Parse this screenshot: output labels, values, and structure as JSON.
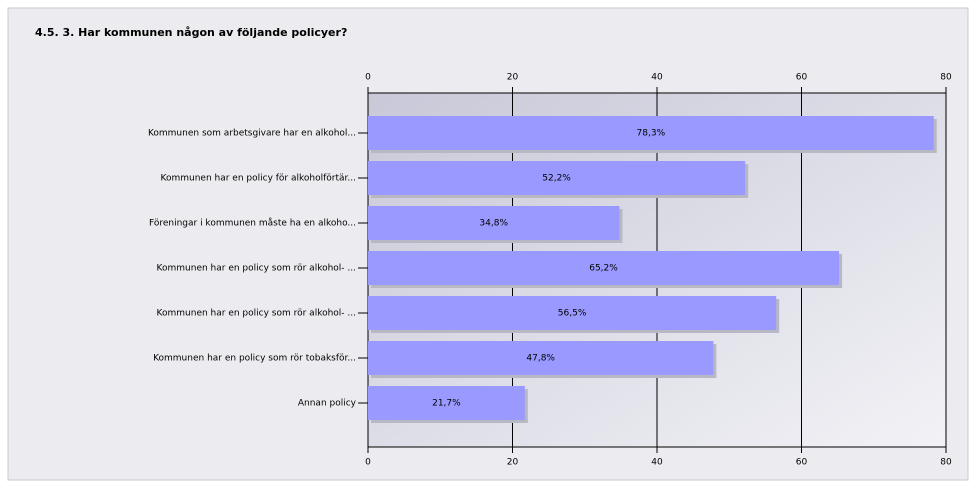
{
  "chart_data": {
    "type": "bar",
    "orientation": "horizontal",
    "title": "4.5. 3. Har kommunen någon av följande policyer?",
    "categories": [
      "Kommunen som arbetsgivare har en alkohol...",
      "Kommunen har en policy för alkoholförtär...",
      "Föreningar i kommunen måste ha en alkoho...",
      "Kommunen har en policy som rör alkohol- ...",
      "Kommunen har en policy som rör alkohol- ...",
      "Kommunen har en policy som rör tobaksför...",
      "Annan policy"
    ],
    "values": [
      78.3,
      52.2,
      34.8,
      65.2,
      56.5,
      47.8,
      21.7
    ],
    "value_labels": [
      "78,3%",
      "52,2%",
      "34,8%",
      "65,2%",
      "56,5%",
      "47,8%",
      "21,7%"
    ],
    "color": "#9999ff",
    "xlim": [
      0,
      80
    ],
    "xticks": [
      0,
      20,
      40,
      60,
      80
    ],
    "grid": true
  }
}
